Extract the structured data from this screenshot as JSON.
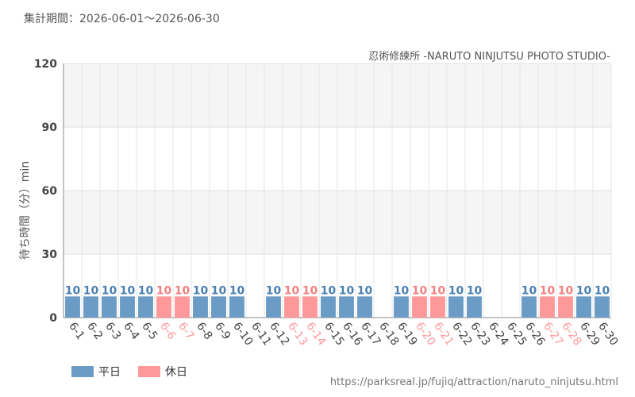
{
  "header": {
    "period_label": "集計期間：2026-06-01〜2026-06-30",
    "subtitle": "忍術修練所 -NARUTO NINJUTSU PHOTO STUDIO-"
  },
  "legend": {
    "weekday_label": "平日",
    "holiday_label": "休日"
  },
  "source_url": "https://parksreal.jp/fujiq/attraction/naruto_ninjutsu.html",
  "colors": {
    "weekday": "#6a9cc5",
    "holiday": "#ff9999",
    "weekday_label": "#4a80b0",
    "holiday_label": "#f08080",
    "band": "#f5f5f5"
  },
  "chart_data": {
    "type": "bar",
    "ylabel": "待ち時間（分）min",
    "ylim": [
      0,
      120
    ],
    "yticks": [
      0,
      30,
      60,
      90,
      120
    ],
    "categories": [
      "6-1",
      "6-2",
      "6-3",
      "6-4",
      "6-5",
      "6-6",
      "6-7",
      "6-8",
      "6-9",
      "6-10",
      "6-11",
      "6-12",
      "6-13",
      "6-14",
      "6-15",
      "6-16",
      "6-17",
      "6-18",
      "6-19",
      "6-20",
      "6-21",
      "6-22",
      "6-23",
      "6-24",
      "6-25",
      "6-26",
      "6-27",
      "6-28",
      "6-29",
      "6-30"
    ],
    "values": [
      10,
      10,
      10,
      10,
      10,
      10,
      10,
      10,
      10,
      10,
      null,
      10,
      10,
      10,
      10,
      10,
      10,
      null,
      10,
      10,
      10,
      10,
      10,
      null,
      null,
      10,
      10,
      10,
      10,
      10
    ],
    "holiday": [
      false,
      false,
      false,
      false,
      false,
      true,
      true,
      false,
      false,
      false,
      false,
      false,
      true,
      true,
      false,
      false,
      false,
      false,
      false,
      true,
      true,
      false,
      false,
      false,
      false,
      false,
      true,
      true,
      false,
      false
    ],
    "grid": true,
    "legend_position": "bottom-left"
  }
}
